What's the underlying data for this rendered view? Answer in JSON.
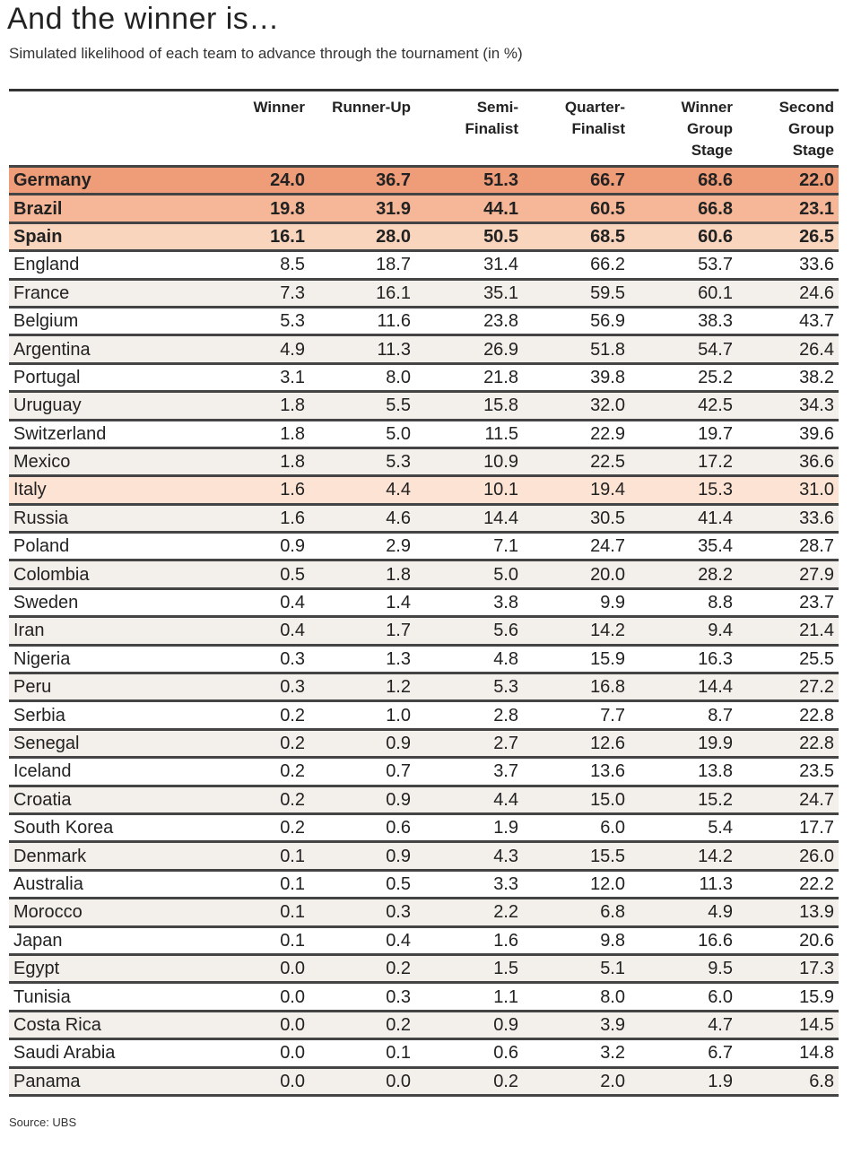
{
  "title": "And the winner is…",
  "subtitle": "Simulated likelihood of each team to advance through the tournament (in %)",
  "source": "Source: UBS",
  "columns": [
    "",
    "Winner",
    "Runner-Up",
    "Semi-\nFinalist",
    "Quarter-\nFinalist",
    "Winner\nGroup\nStage",
    "Second\nGroup\nStage"
  ],
  "highlight_colors": {
    "germany": "#ef9c78",
    "brazil": "#f5b797",
    "spain": "#f9d5be",
    "italy": "#fce3d3",
    "alt": "#f3efea"
  },
  "rows": [
    [
      "Germany",
      "24.0",
      "36.7",
      "51.3",
      "66.7",
      "68.6",
      "22.0"
    ],
    [
      "Brazil",
      "19.8",
      "31.9",
      "44.1",
      "60.5",
      "66.8",
      "23.1"
    ],
    [
      "Spain",
      "16.1",
      "28.0",
      "50.5",
      "68.5",
      "60.6",
      "26.5"
    ],
    [
      "England",
      "8.5",
      "18.7",
      "31.4",
      "66.2",
      "53.7",
      "33.6"
    ],
    [
      "France",
      "7.3",
      "16.1",
      "35.1",
      "59.5",
      "60.1",
      "24.6"
    ],
    [
      "Belgium",
      "5.3",
      "11.6",
      "23.8",
      "56.9",
      "38.3",
      "43.7"
    ],
    [
      "Argentina",
      "4.9",
      "11.3",
      "26.9",
      "51.8",
      "54.7",
      "26.4"
    ],
    [
      "Portugal",
      "3.1",
      "8.0",
      "21.8",
      "39.8",
      "25.2",
      "38.2"
    ],
    [
      "Uruguay",
      "1.8",
      "5.5",
      "15.8",
      "32.0",
      "42.5",
      "34.3"
    ],
    [
      "Switzerland",
      "1.8",
      "5.0",
      "11.5",
      "22.9",
      "19.7",
      "39.6"
    ],
    [
      "Mexico",
      "1.8",
      "5.3",
      "10.9",
      "22.5",
      "17.2",
      "36.6"
    ],
    [
      "Italy",
      "1.6",
      "4.4",
      "10.1",
      "19.4",
      "15.3",
      "31.0"
    ],
    [
      "Russia",
      "1.6",
      "4.6",
      "14.4",
      "30.5",
      "41.4",
      "33.6"
    ],
    [
      "Poland",
      "0.9",
      "2.9",
      "7.1",
      "24.7",
      "35.4",
      "28.7"
    ],
    [
      "Colombia",
      "0.5",
      "1.8",
      "5.0",
      "20.0",
      "28.2",
      "27.9"
    ],
    [
      "Sweden",
      "0.4",
      "1.4",
      "3.8",
      "9.9",
      "8.8",
      "23.7"
    ],
    [
      "Iran",
      "0.4",
      "1.7",
      "5.6",
      "14.2",
      "9.4",
      "21.4"
    ],
    [
      "Nigeria",
      "0.3",
      "1.3",
      "4.8",
      "15.9",
      "16.3",
      "25.5"
    ],
    [
      "Peru",
      "0.3",
      "1.2",
      "5.3",
      "16.8",
      "14.4",
      "27.2"
    ],
    [
      "Serbia",
      "0.2",
      "1.0",
      "2.8",
      "7.7",
      "8.7",
      "22.8"
    ],
    [
      "Senegal",
      "0.2",
      "0.9",
      "2.7",
      "12.6",
      "19.9",
      "22.8"
    ],
    [
      "Iceland",
      "0.2",
      "0.7",
      "3.7",
      "13.6",
      "13.8",
      "23.5"
    ],
    [
      "Croatia",
      "0.2",
      "0.9",
      "4.4",
      "15.0",
      "15.2",
      "24.7"
    ],
    [
      "South Korea",
      "0.2",
      "0.6",
      "1.9",
      "6.0",
      "5.4",
      "17.7"
    ],
    [
      "Denmark",
      "0.1",
      "0.9",
      "4.3",
      "15.5",
      "14.2",
      "26.0"
    ],
    [
      "Australia",
      "0.1",
      "0.5",
      "3.3",
      "12.0",
      "11.3",
      "22.2"
    ],
    [
      "Morocco",
      "0.1",
      "0.3",
      "2.2",
      "6.8",
      "4.9",
      "13.9"
    ],
    [
      "Japan",
      "0.1",
      "0.4",
      "1.6",
      "9.8",
      "16.6",
      "20.6"
    ],
    [
      "Egypt",
      "0.0",
      "0.2",
      "1.5",
      "5.1",
      "9.5",
      "17.3"
    ],
    [
      "Tunisia",
      "0.0",
      "0.3",
      "1.1",
      "8.0",
      "6.0",
      "15.9"
    ],
    [
      "Costa Rica",
      "0.0",
      "0.2",
      "0.9",
      "3.9",
      "4.7",
      "14.5"
    ],
    [
      "Saudi Arabia",
      "0.0",
      "0.1",
      "0.6",
      "3.2",
      "6.7",
      "14.8"
    ],
    [
      "Panama",
      "0.0",
      "0.0",
      "0.2",
      "2.0",
      "1.9",
      "6.8"
    ]
  ]
}
